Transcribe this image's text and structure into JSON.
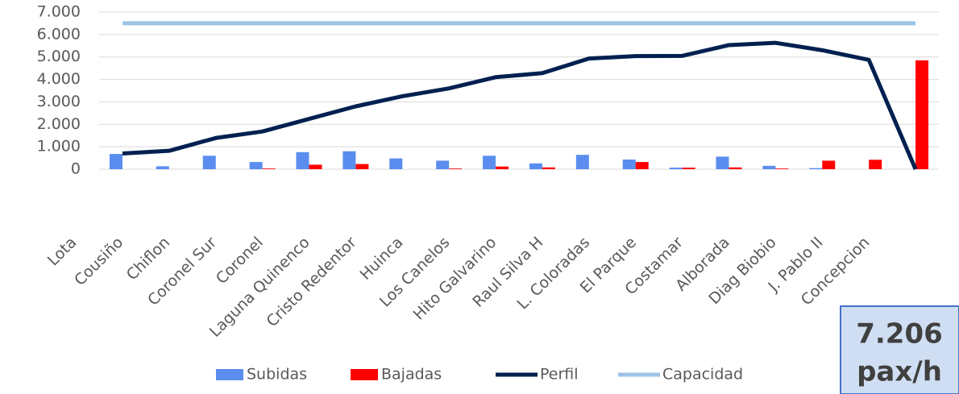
{
  "chart_data": {
    "type": "bar",
    "categories": [
      "Lota",
      "Cousiño",
      "Chiflon",
      "Coronel Sur",
      "Coronel",
      "Laguna Quinenco",
      "Cristo Redentor",
      "Huinca",
      "Los Canelos",
      "Hito Galvarino",
      "Raul Silva H",
      "L. Coloradas",
      "El Parque",
      "Costamar",
      "Alborada",
      "Diag Biobio",
      "J. Pablo II",
      "Concepcion"
    ],
    "series": [
      {
        "name": "Subidas",
        "type": "bar",
        "color": "#5b8def",
        "values": [
          680,
          130,
          600,
          320,
          760,
          800,
          480,
          380,
          600,
          260,
          640,
          430,
          70,
          560,
          150,
          50,
          0,
          0
        ]
      },
      {
        "name": "Bajadas",
        "type": "bar",
        "color": "#ff0000",
        "values": [
          0,
          0,
          0,
          30,
          200,
          230,
          0,
          30,
          120,
          80,
          0,
          320,
          70,
          80,
          30,
          380,
          420,
          4850
        ]
      },
      {
        "name": "Perfil",
        "type": "line",
        "color": "#002050",
        "values": [
          700,
          820,
          1390,
          1680,
          2240,
          2800,
          3250,
          3600,
          4100,
          4280,
          4930,
          5040,
          5050,
          5530,
          5630,
          5300,
          4870,
          0
        ]
      },
      {
        "name": "Capacidad",
        "type": "line",
        "color": "#9dc3e6",
        "values": [
          6500,
          6500,
          6500,
          6500,
          6500,
          6500,
          6500,
          6500,
          6500,
          6500,
          6500,
          6500,
          6500,
          6500,
          6500,
          6500,
          6500,
          6500
        ]
      }
    ],
    "ylim": [
      0,
      7000
    ],
    "yticks": [
      0,
      {
        "value": 1000,
        "label": "1.000"
      },
      {
        "value": 2000,
        "label": "2.000"
      },
      {
        "value": 3000,
        "label": "3.000"
      },
      {
        "value": 4000,
        "label": "4.000"
      },
      {
        "value": 5000,
        "label": "5.000"
      },
      {
        "value": 6000,
        "label": "6.000"
      },
      {
        "value": 7000,
        "label": "7.000"
      }
    ],
    "grid": true,
    "legend": "bottom",
    "annotations": [
      "7.206",
      "pax/h"
    ]
  }
}
